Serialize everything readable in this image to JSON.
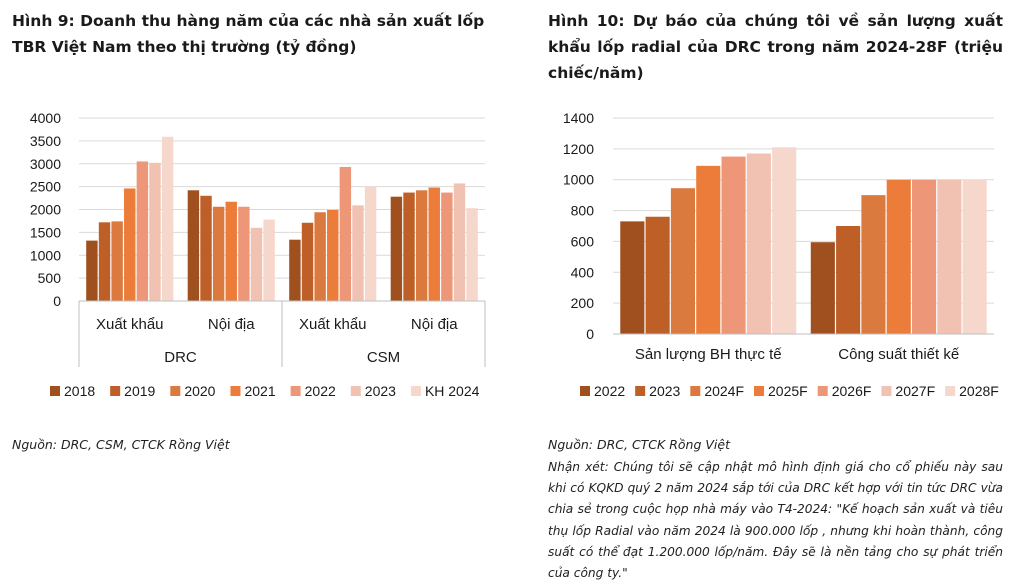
{
  "colors": {
    "s2018": "#A0501F",
    "s2019": "#BF5F28",
    "s2020": "#DA7A3F",
    "s2021": "#EC7C3A",
    "s2022": "#ED9678",
    "s2023": "#F1C2B2",
    "skh2024": "#F5D7CC",
    "gridline": "#D9D9D9",
    "axis": "#BFBFBF"
  },
  "left": {
    "title": "Hình 9: Doanh thu hàng năm của các nhà sản xuất lốp TBR Việt Nam theo thị trường (tỷ đồng)",
    "source": "Nguồn: DRC, CSM, CTCK Rồng Việt",
    "chart_data": {
      "type": "bar",
      "title": "",
      "categories": [
        "Xuất khẩu",
        "Nội địa",
        "Xuất khẩu",
        "Nội địa"
      ],
      "groups": [
        {
          "label": "DRC",
          "span": [
            0,
            1
          ]
        },
        {
          "label": "CSM",
          "span": [
            2,
            3
          ]
        }
      ],
      "ylim": [
        0,
        4000
      ],
      "yticks": [
        0,
        500,
        1000,
        1500,
        2000,
        2500,
        3000,
        3500,
        4000
      ],
      "grid": true,
      "legend_position": "bottom",
      "series": [
        {
          "name": "2018",
          "color": "#A0501F",
          "values": [
            1320,
            2420,
            1340,
            2280
          ]
        },
        {
          "name": "2019",
          "color": "#BF5F28",
          "values": [
            1720,
            2300,
            1710,
            2370
          ]
        },
        {
          "name": "2020",
          "color": "#DA7A3F",
          "values": [
            1740,
            2060,
            1940,
            2420
          ]
        },
        {
          "name": "2021",
          "color": "#EC7C3A",
          "values": [
            2460,
            2170,
            1990,
            2480
          ]
        },
        {
          "name": "2022",
          "color": "#ED9678",
          "values": [
            3050,
            2060,
            2930,
            2370
          ]
        },
        {
          "name": "2023",
          "color": "#F1C2B2",
          "values": [
            3020,
            1600,
            2090,
            2570
          ]
        },
        {
          "name": "KH 2024",
          "color": "#F5D7CC",
          "values": [
            3590,
            1780,
            2500,
            2030
          ]
        }
      ]
    }
  },
  "right": {
    "title": "Hình 10: Dự báo của chúng tôi về sản lượng xuất khẩu lốp radial của DRC trong năm 2024-28F (triệu chiếc/năm)",
    "source": "Nguồn: DRC, CTCK Rồng Việt",
    "comment": "Nhận xét: Chúng tôi sẽ cập nhật mô hình định giá cho cổ phiếu này sau khi có KQKD quý 2 năm 2024 sắp tới của DRC kết hợp với tin tức DRC vừa chia sẻ trong cuộc họp nhà máy vào T4-2024: \"Kế hoạch sản xuất và tiêu thụ lốp Radial vào năm 2024 là 900.000 lốp , nhưng khi hoàn thành, công suất có thể đạt 1.200.000 lốp/năm. Đây sẽ là nền tảng cho sự phát triển của công ty.\"",
    "chart_data": {
      "type": "bar",
      "title": "",
      "categories": [
        "Sản lượng BH thực tế",
        "Công suất thiết kế"
      ],
      "ylim": [
        0,
        1400
      ],
      "yticks": [
        0,
        200,
        400,
        600,
        800,
        1000,
        1200,
        1400
      ],
      "grid": true,
      "legend_position": "bottom",
      "series": [
        {
          "name": "2022",
          "color": "#A0501F",
          "values": [
            730,
            595
          ]
        },
        {
          "name": "2023",
          "color": "#BF5F28",
          "values": [
            760,
            700
          ]
        },
        {
          "name": "2024F",
          "color": "#DA7A3F",
          "values": [
            945,
            900
          ]
        },
        {
          "name": "2025F",
          "color": "#EC7C3A",
          "values": [
            1090,
            1000
          ]
        },
        {
          "name": "2026F",
          "color": "#ED9678",
          "values": [
            1150,
            1000
          ]
        },
        {
          "name": "2027F",
          "color": "#F1C2B2",
          "values": [
            1170,
            1000
          ]
        },
        {
          "name": "2028F",
          "color": "#F5D7CC",
          "values": [
            1210,
            1000
          ]
        }
      ]
    }
  }
}
